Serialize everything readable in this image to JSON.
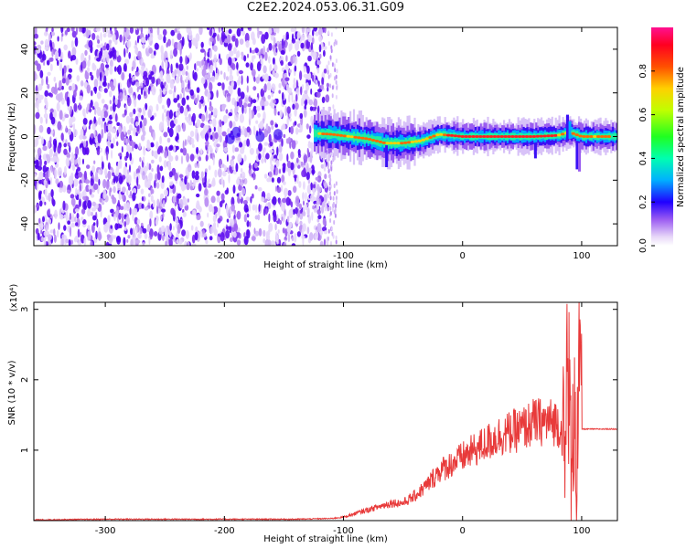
{
  "title": "C2E2.2024.053.06.31.G09",
  "colors": {
    "snr_line": "#e83a3a",
    "axis": "#000000",
    "background": "#ffffff"
  },
  "chart_data": [
    {
      "type": "heatmap",
      "xlabel": "Height of straight line (km)",
      "ylabel": "Frequency (Hz)",
      "xlim": [
        -360,
        130
      ],
      "ylim": [
        -50,
        50
      ],
      "x_ticks": [
        "-300",
        "-200",
        "-100",
        "0",
        "100"
      ],
      "x_tick_values": [
        -300,
        -200,
        -100,
        0,
        100
      ],
      "y_ticks": [
        "-40",
        "-20",
        "0",
        "20",
        "40"
      ],
      "y_tick_values": [
        -40,
        -20,
        0,
        20,
        40
      ],
      "noise_region_x": [
        -360,
        -113
      ],
      "signal_track": [
        {
          "x": -125,
          "f": 1.5
        },
        {
          "x": -110,
          "f": 1
        },
        {
          "x": -95,
          "f": 0
        },
        {
          "x": -80,
          "f": -1
        },
        {
          "x": -65,
          "f": -3
        },
        {
          "x": -50,
          "f": -3
        },
        {
          "x": -35,
          "f": -2
        },
        {
          "x": -20,
          "f": 1
        },
        {
          "x": -10,
          "f": 0.5
        },
        {
          "x": 0,
          "f": 0
        },
        {
          "x": 20,
          "f": 0
        },
        {
          "x": 40,
          "f": 0
        },
        {
          "x": 60,
          "f": 0
        },
        {
          "x": 80,
          "f": 0.5
        },
        {
          "x": 90,
          "f": 2
        },
        {
          "x": 100,
          "f": 0
        },
        {
          "x": 130,
          "f": 0
        }
      ],
      "colorbar": {
        "label": "Normalized spectral amplitude",
        "ticks": [
          "0.0",
          "0.2",
          "0.4",
          "0.6",
          "0.8"
        ],
        "tick_values": [
          0,
          0.2,
          0.4,
          0.6,
          0.8
        ],
        "range": [
          0,
          1
        ]
      }
    },
    {
      "type": "line",
      "xlabel": "Height of straight line (km)",
      "ylabel": "SNR (10 * v/v)",
      "y_multiplier": "(x10⁴)",
      "xlim": [
        -360,
        130
      ],
      "ylim": [
        0,
        3.1
      ],
      "x_ticks": [
        "-300",
        "-200",
        "-100",
        "0",
        "100"
      ],
      "x_tick_values": [
        -300,
        -200,
        -100,
        0,
        100
      ],
      "y_ticks": [
        "1",
        "2",
        "3"
      ],
      "y_tick_values": [
        1,
        2,
        3
      ],
      "series": [
        {
          "x": [
            -360,
            -300,
            -200,
            -140,
            -110,
            -100,
            -90,
            -80,
            -70,
            -60,
            -50,
            -40,
            -30,
            -20,
            -10,
            0,
            10,
            20,
            30,
            40,
            50,
            60,
            70,
            80,
            84,
            86,
            88,
            90,
            92,
            94,
            96,
            98,
            100,
            110,
            120,
            130
          ],
          "y": [
            0.01,
            0.02,
            0.02,
            0.02,
            0.03,
            0.05,
            0.1,
            0.15,
            0.2,
            0.25,
            0.25,
            0.35,
            0.5,
            0.7,
            0.8,
            0.9,
            1.0,
            1.1,
            1.2,
            1.25,
            1.3,
            1.4,
            1.4,
            1.4,
            1.2,
            0.5,
            2.6,
            1.5,
            0.2,
            2.2,
            0.6,
            2.4,
            1.3,
            1.3,
            1.3,
            1.3
          ]
        }
      ]
    }
  ]
}
